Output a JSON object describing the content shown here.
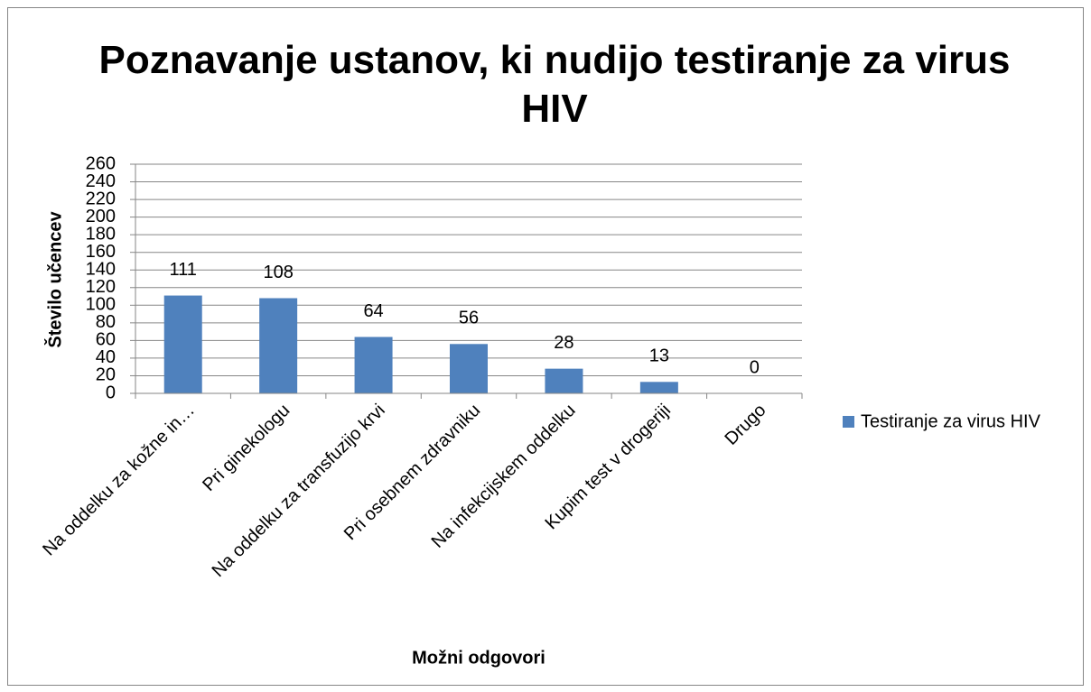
{
  "chart_data": {
    "type": "bar",
    "title": "Poznavanje ustanov, ki nudijo testiranje za virus HIV",
    "x_label": "Možni odgovori",
    "y_label": "Število učencev",
    "categories": [
      "Na oddelku za kožne in…",
      "Pri ginekologu",
      "Na oddelku za transfuzijo krvi",
      "Pri osebnem zdravniku",
      "Na infekcijskem oddelku",
      "Kupim test v drogeriji",
      "Drugo"
    ],
    "series": [
      {
        "name": "Testiranje za virus HIV",
        "color": "#4f81bd",
        "values": [
          111,
          108,
          64,
          56,
          28,
          13,
          0
        ]
      }
    ],
    "ylim": [
      0,
      260
    ],
    "yticks": [
      0,
      20,
      40,
      60,
      80,
      100,
      120,
      140,
      160,
      180,
      200,
      220,
      240,
      260
    ],
    "grid": true,
    "legend": "right"
  }
}
